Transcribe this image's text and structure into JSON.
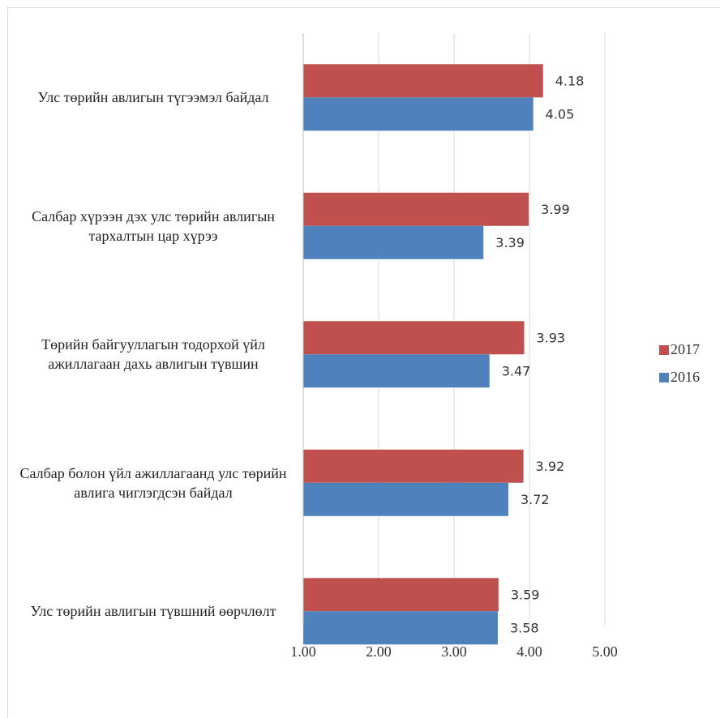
{
  "chart_data": {
    "type": "bar",
    "orientation": "horizontal",
    "categories": [
      "Улс төрийн авлигын түгээмэл байдал",
      "Салбар хүрээн дэх улс төрийн авлигын тархалтын цар хүрээ",
      "Төрийн байгууллагын тодорхой үйл ажиллагаан дахь авлигын түвшин",
      "Салбар болон үйл ажиллагаанд улс төрийн авлига чиглэгдсэн байдал",
      "Улс төрийн авлигын түвшний өөрчлөлт"
    ],
    "series": [
      {
        "name": "2017",
        "color": "#c0504d",
        "values": [
          4.18,
          3.99,
          3.93,
          3.92,
          3.59
        ]
      },
      {
        "name": "2016",
        "color": "#4f81bd",
        "values": [
          4.05,
          3.39,
          3.47,
          3.72,
          3.58
        ]
      }
    ],
    "xlim": [
      1,
      5
    ],
    "xticks": [
      {
        "value": 1,
        "label": "1.00"
      },
      {
        "value": 2,
        "label": "2.00"
      },
      {
        "value": 3,
        "label": "3.00"
      },
      {
        "value": 4,
        "label": "4.00"
      },
      {
        "value": 5,
        "label": "5.00"
      }
    ],
    "grid": true,
    "legend": "right"
  }
}
